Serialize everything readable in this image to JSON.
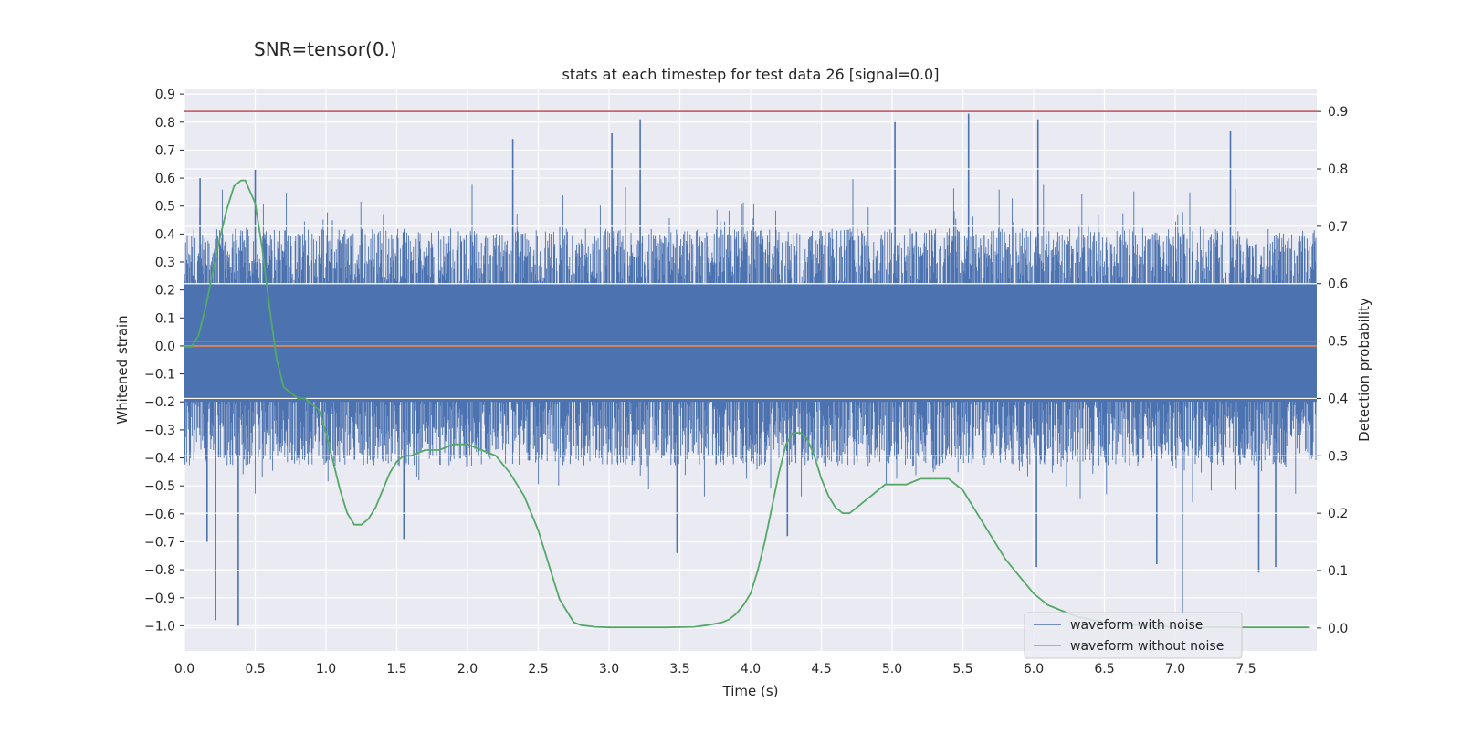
{
  "chart_data": {
    "type": "line",
    "suptitle": "SNR=tensor(0.)",
    "title": "stats at each timestep for test data 26 [signal=0.0]",
    "xlabel": "Time (s)",
    "ylabel_left": "Whitened strain",
    "ylabel_right": "Detection probability",
    "xlim": [
      0.0,
      8.0
    ],
    "ylim_left": [
      -1.09,
      0.92
    ],
    "ylim_right": [
      -0.04,
      0.94
    ],
    "grid": true,
    "legend_position": "lower-right",
    "x_ticks": [
      "0.0",
      "0.5",
      "1.0",
      "1.5",
      "2.0",
      "2.5",
      "3.0",
      "3.5",
      "4.0",
      "4.5",
      "5.0",
      "5.5",
      "6.0",
      "6.5",
      "7.0",
      "7.5"
    ],
    "y_ticks_left": [
      "0.9",
      "0.8",
      "0.7",
      "0.6",
      "0.5",
      "0.4",
      "0.3",
      "0.2",
      "0.1",
      "0.0",
      "−0.1",
      "−0.2",
      "−0.3",
      "−0.4",
      "−0.5",
      "−0.6",
      "−0.7",
      "−0.8",
      "−0.9",
      "−1.0"
    ],
    "y_ticks_right": [
      "0.9",
      "0.8",
      "0.7",
      "0.6",
      "0.5",
      "0.4",
      "0.3",
      "0.2",
      "0.1",
      "0.0"
    ],
    "colors": {
      "noise": "#4c72b0",
      "clean": "#dd8452",
      "probability": "#55a868",
      "threshold": "#c44e52",
      "plot_bg": "#eaeaf2",
      "grid": "#ffffff"
    },
    "threshold": {
      "axis": "right",
      "value": 0.9
    },
    "series": [
      {
        "name": "waveform with noise",
        "axis": "left",
        "note_style": "dense noise trace",
        "envelope": {
          "upper_typical": 0.42,
          "lower_typical": -0.43,
          "peaks": [
            [
              0.22,
              -0.98
            ],
            [
              0.38,
              -1.0
            ],
            [
              0.5,
              0.63
            ],
            [
              0.11,
              0.6
            ],
            [
              0.16,
              -0.7
            ],
            [
              3.22,
              0.81
            ],
            [
              3.02,
              0.76
            ],
            [
              5.54,
              0.83
            ],
            [
              5.02,
              0.8
            ],
            [
              6.03,
              0.81
            ],
            [
              7.39,
              0.77
            ],
            [
              7.05,
              -0.96
            ],
            [
              3.48,
              -0.74
            ],
            [
              4.26,
              -0.68
            ],
            [
              6.02,
              -0.79
            ],
            [
              7.71,
              -0.79
            ],
            [
              7.59,
              -0.81
            ],
            [
              2.32,
              0.74
            ],
            [
              1.55,
              -0.69
            ],
            [
              6.87,
              -0.78
            ]
          ]
        }
      },
      {
        "name": "waveform without noise",
        "axis": "left",
        "x": [
          0.0,
          8.0
        ],
        "y": [
          0.0,
          0.0
        ]
      },
      {
        "axis": "right",
        "x": [
          0.0,
          0.05,
          0.1,
          0.15,
          0.2,
          0.25,
          0.3,
          0.35,
          0.4,
          0.43,
          0.5,
          0.55,
          0.6,
          0.65,
          0.7,
          0.75,
          0.8,
          0.85,
          0.9,
          0.95,
          1.0,
          1.05,
          1.1,
          1.15,
          1.2,
          1.25,
          1.3,
          1.35,
          1.4,
          1.45,
          1.5,
          1.55,
          1.6,
          1.7,
          1.8,
          1.9,
          2.0,
          2.1,
          2.2,
          2.3,
          2.4,
          2.5,
          2.6,
          2.65,
          2.7,
          2.75,
          2.8,
          2.9,
          3.0,
          3.2,
          3.4,
          3.6,
          3.7,
          3.8,
          3.85,
          3.9,
          3.95,
          4.0,
          4.05,
          4.1,
          4.15,
          4.2,
          4.25,
          4.3,
          4.35,
          4.4,
          4.45,
          4.5,
          4.55,
          4.6,
          4.65,
          4.7,
          4.75,
          4.8,
          4.85,
          4.9,
          4.95,
          5.0,
          5.1,
          5.2,
          5.3,
          5.35,
          5.4,
          5.5,
          5.6,
          5.7,
          5.8,
          5.9,
          6.0,
          6.1,
          6.2,
          6.3,
          6.5,
          6.7,
          7.0,
          7.5,
          7.95
        ],
        "y": [
          0.49,
          0.49,
          0.51,
          0.56,
          0.62,
          0.68,
          0.73,
          0.77,
          0.78,
          0.78,
          0.74,
          0.66,
          0.56,
          0.47,
          0.42,
          0.41,
          0.4,
          0.4,
          0.39,
          0.38,
          0.34,
          0.29,
          0.24,
          0.2,
          0.18,
          0.18,
          0.19,
          0.21,
          0.24,
          0.27,
          0.29,
          0.3,
          0.3,
          0.31,
          0.31,
          0.32,
          0.32,
          0.31,
          0.3,
          0.27,
          0.23,
          0.17,
          0.09,
          0.05,
          0.03,
          0.01,
          0.005,
          0.002,
          0.001,
          0.001,
          0.001,
          0.002,
          0.005,
          0.01,
          0.015,
          0.025,
          0.04,
          0.06,
          0.1,
          0.15,
          0.21,
          0.27,
          0.32,
          0.34,
          0.34,
          0.33,
          0.3,
          0.26,
          0.23,
          0.21,
          0.2,
          0.2,
          0.21,
          0.22,
          0.23,
          0.24,
          0.25,
          0.25,
          0.25,
          0.26,
          0.26,
          0.26,
          0.26,
          0.24,
          0.2,
          0.16,
          0.12,
          0.09,
          0.06,
          0.04,
          0.03,
          0.02,
          0.01,
          0.005,
          0.002,
          0.001,
          0.001
        ]
      }
    ]
  },
  "legend": {
    "items": [
      {
        "label": "waveform with noise",
        "color": "#4c72b0"
      },
      {
        "label": "waveform without noise",
        "color": "#dd8452"
      }
    ]
  }
}
